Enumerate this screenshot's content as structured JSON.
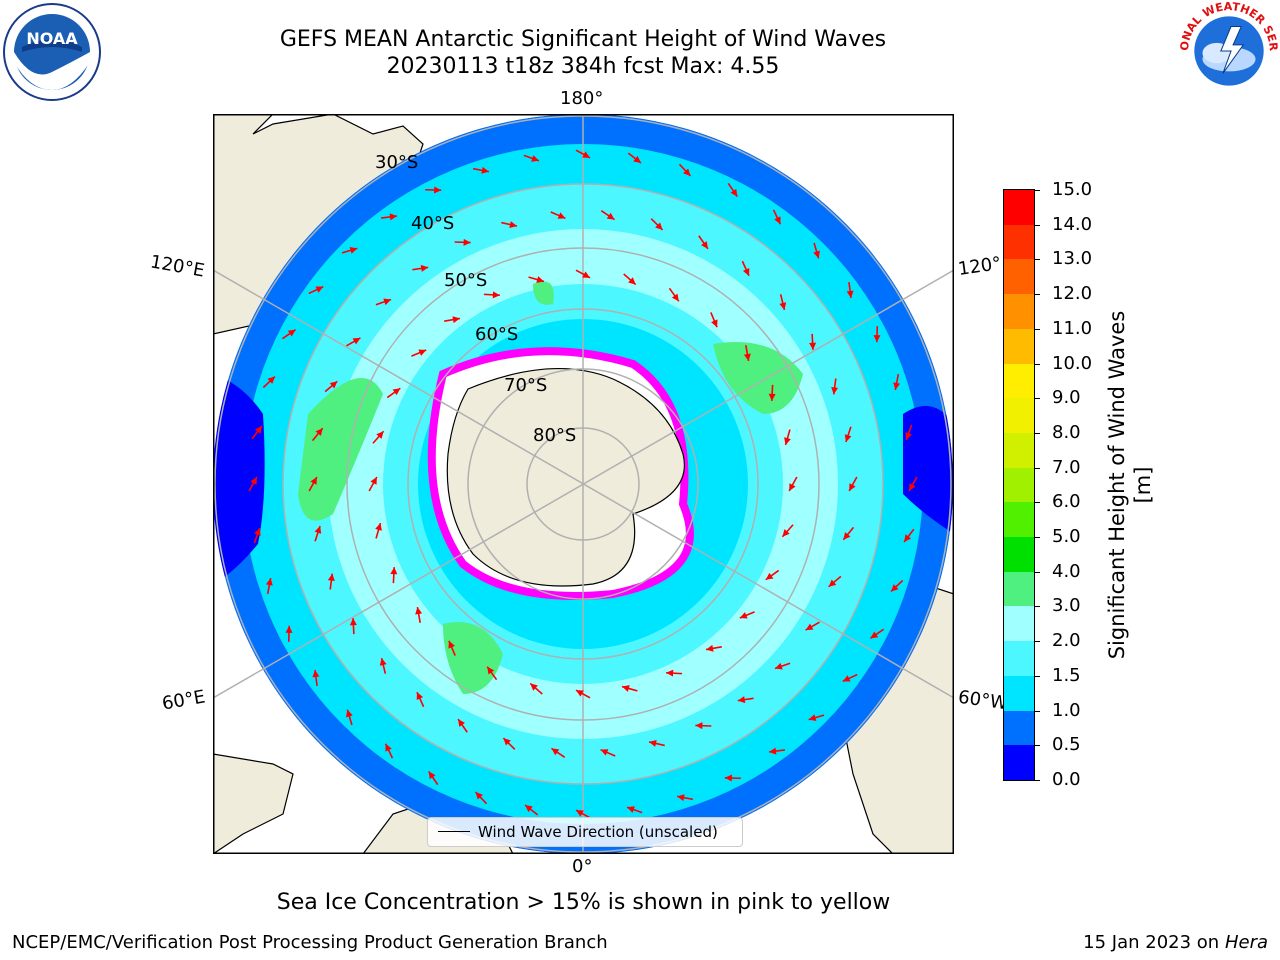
{
  "title": {
    "line1": "GEFS MEAN Antarctic Significant Height of Wind Waves",
    "line2": "20230113 t18z 384h fcst   Max: 4.55"
  },
  "logos": {
    "left": "NOAA",
    "right": "NATIONAL WEATHER SERVICE"
  },
  "map": {
    "lon_labels": {
      "top": "180°",
      "bottom": "0°",
      "left_upper": "120°E",
      "left_lower": "60°E",
      "right_upper": "120°",
      "right_lower": "60°W"
    },
    "lat_labels": [
      "30°S",
      "40°S",
      "50°S",
      "60°S",
      "70°S",
      "80°S"
    ],
    "legend": "Wind Wave Direction (unscaled)",
    "colors": {
      "land": "#efecdc",
      "ice_edge": "#ff00ff",
      "arrow": "#ff0000",
      "grid": "#b0b0b0"
    }
  },
  "colorbar": {
    "label": "Significant Height of Wind Waves [m]",
    "ticks": [
      "0.0",
      "0.5",
      "1.0",
      "1.5",
      "2.0",
      "3.0",
      "4.0",
      "5.0",
      "6.0",
      "7.0",
      "8.0",
      "9.0",
      "10.0",
      "11.0",
      "12.0",
      "13.0",
      "14.0",
      "15.0"
    ],
    "colors": [
      "#0000ff",
      "#0070ff",
      "#00e5ff",
      "#4df7ff",
      "#a0ffff",
      "#50f080",
      "#00e000",
      "#50f000",
      "#a0f000",
      "#d0f000",
      "#f0f000",
      "#ffee00",
      "#ffbb00",
      "#ff9000",
      "#ff6000",
      "#ff3000",
      "#ff0000"
    ]
  },
  "caption": "Sea Ice Concentration > 15% is shown in pink to yellow",
  "footer": {
    "left": "NCEP/EMC/Verification Post Processing Product Generation Branch",
    "right_prefix": "15 Jan 2023 on ",
    "right_machine": "Hera"
  }
}
